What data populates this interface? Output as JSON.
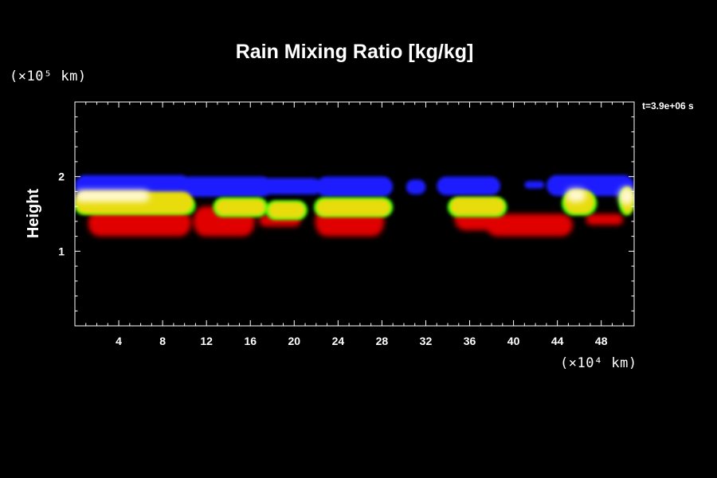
{
  "chart_data": {
    "type": "heatmap",
    "title": "Rain Mixing Ratio [kg/kg]",
    "ylabel": "Height",
    "x_units_label": "(×10⁴ km)",
    "y_units_label": "(×10⁵ km)",
    "time_label": "t=3.9e+06 s",
    "xlim": [
      0,
      51
    ],
    "ylim": [
      0,
      3
    ],
    "x_ticks": [
      {
        "value": 4,
        "label": "4"
      },
      {
        "value": 8,
        "label": "8"
      },
      {
        "value": 12,
        "label": "12"
      },
      {
        "value": 16,
        "label": "16"
      },
      {
        "value": 20,
        "label": "20"
      },
      {
        "value": 24,
        "label": "24"
      },
      {
        "value": 28,
        "label": "28"
      },
      {
        "value": 32,
        "label": "32"
      },
      {
        "value": 36,
        "label": "36"
      },
      {
        "value": 40,
        "label": "40"
      },
      {
        "value": 44,
        "label": "44"
      },
      {
        "value": 48,
        "label": "48"
      }
    ],
    "y_ticks": [
      {
        "value": 1,
        "label": "1"
      },
      {
        "value": 2,
        "label": "2"
      }
    ],
    "colors": {
      "blue": "#1a1aff",
      "red": "#e00000",
      "green": "#33ff00",
      "yellow": "#e8dc10",
      "pale": "#fff8d0",
      "axis": "#ffffff",
      "background": "#000000"
    },
    "regions": {
      "blue_band": [
        {
          "x": [
            0.0,
            10.6
          ],
          "ybot": 1.74,
          "ytop": 2.02
        },
        {
          "x": [
            9.6,
            18.0
          ],
          "ybot": 1.73,
          "ytop": 2.0
        },
        {
          "x": [
            17.0,
            22.5
          ],
          "ybot": 1.76,
          "ytop": 1.98
        },
        {
          "x": [
            22.0,
            29.0
          ],
          "ybot": 1.73,
          "ytop": 2.0
        },
        {
          "x": [
            30.2,
            32.0
          ],
          "ybot": 1.76,
          "ytop": 1.96
        },
        {
          "x": [
            33.0,
            38.8
          ],
          "ybot": 1.75,
          "ytop": 2.0
        },
        {
          "x": [
            41.0,
            42.8
          ],
          "ybot": 1.84,
          "ytop": 1.94
        },
        {
          "x": [
            43.0,
            51.0
          ],
          "ybot": 1.74,
          "ytop": 2.02
        }
      ],
      "red": [
        {
          "x": [
            1.2,
            10.6
          ],
          "ybot": 1.2,
          "ytop": 1.55
        },
        {
          "x": [
            10.8,
            16.4
          ],
          "ybot": 1.2,
          "ytop": 1.6
        },
        {
          "x": [
            16.8,
            20.6
          ],
          "ybot": 1.33,
          "ytop": 1.5
        },
        {
          "x": [
            21.9,
            28.2
          ],
          "ybot": 1.2,
          "ytop": 1.6
        },
        {
          "x": [
            34.6,
            38.6
          ],
          "ybot": 1.28,
          "ytop": 1.6
        },
        {
          "x": [
            37.5,
            45.4
          ],
          "ybot": 1.2,
          "ytop": 1.5
        },
        {
          "x": [
            46.6,
            50.0
          ],
          "ybot": 1.35,
          "ytop": 1.5
        }
      ],
      "green": [
        {
          "x": [
            0.0,
            11.0
          ],
          "ybot": 1.49,
          "ytop": 1.72
        },
        {
          "x": [
            12.6,
            17.6
          ],
          "ybot": 1.46,
          "ytop": 1.72
        },
        {
          "x": [
            17.4,
            21.2
          ],
          "ybot": 1.42,
          "ytop": 1.68
        },
        {
          "x": [
            21.8,
            29.0
          ],
          "ybot": 1.46,
          "ytop": 1.72
        },
        {
          "x": [
            34.0,
            39.4
          ],
          "ybot": 1.46,
          "ytop": 1.72
        },
        {
          "x": [
            44.4,
            47.6
          ],
          "ybot": 1.48,
          "ytop": 1.8
        },
        {
          "x": [
            49.6,
            51.0
          ],
          "ybot": 1.48,
          "ytop": 1.85
        }
      ],
      "yellow": [
        {
          "x": [
            0.0,
            10.8
          ],
          "ybot": 1.5,
          "ytop": 1.8
        },
        {
          "x": [
            12.8,
            17.4
          ],
          "ybot": 1.48,
          "ytop": 1.7
        },
        {
          "x": [
            17.6,
            21.0
          ],
          "ybot": 1.44,
          "ytop": 1.66
        },
        {
          "x": [
            22.0,
            28.8
          ],
          "ybot": 1.47,
          "ytop": 1.7
        },
        {
          "x": [
            34.2,
            39.2
          ],
          "ybot": 1.48,
          "ytop": 1.72
        },
        {
          "x": [
            44.6,
            47.4
          ],
          "ybot": 1.5,
          "ytop": 1.82
        },
        {
          "x": [
            49.8,
            51.0
          ],
          "ybot": 1.5,
          "ytop": 1.86
        }
      ],
      "pale": [
        {
          "x": [
            0.0,
            6.8
          ],
          "ybot": 1.66,
          "ytop": 1.82
        },
        {
          "x": [
            44.8,
            46.6
          ],
          "ybot": 1.66,
          "ytop": 1.84
        },
        {
          "x": [
            49.6,
            51.0
          ],
          "ybot": 1.62,
          "ytop": 1.86
        }
      ]
    }
  }
}
